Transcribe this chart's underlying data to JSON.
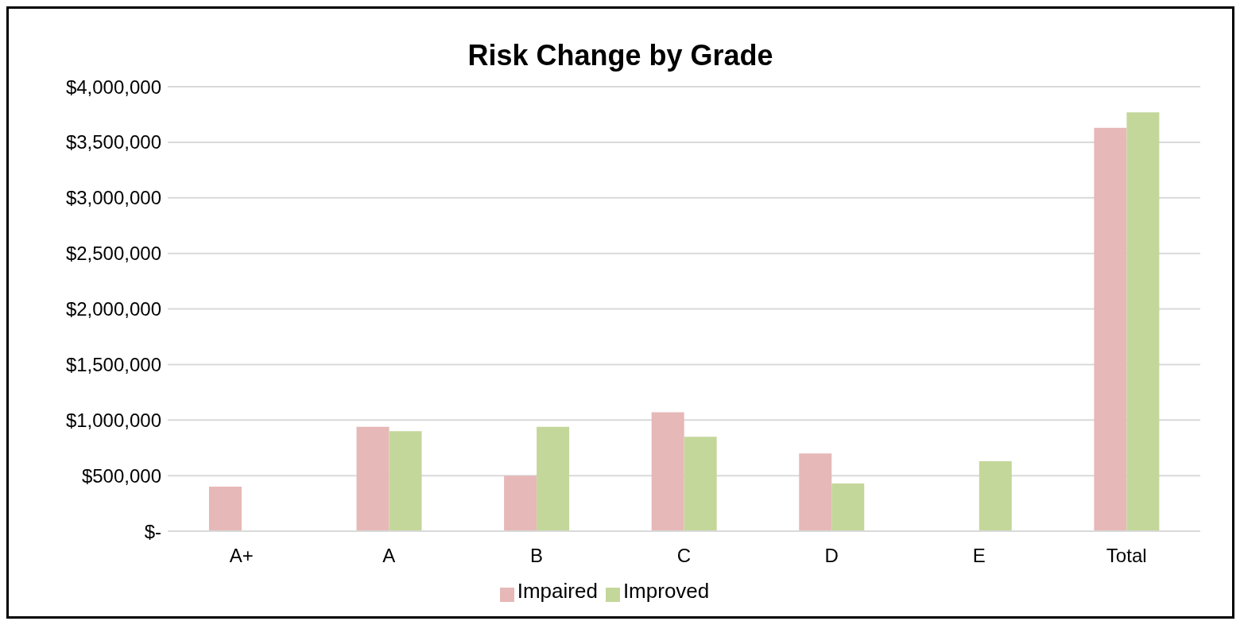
{
  "chart_data": {
    "type": "bar",
    "title": "Risk Change by Grade",
    "categories": [
      "A+",
      "A",
      "B",
      "C",
      "D",
      "E",
      "Total"
    ],
    "series": [
      {
        "name": "Impaired",
        "color": "#e6b8b7",
        "values": [
          400000,
          940000,
          500000,
          1070000,
          700000,
          null,
          3630000
        ]
      },
      {
        "name": "Improved",
        "color": "#c4d79b",
        "values": [
          null,
          900000,
          940000,
          850000,
          430000,
          630000,
          3770000
        ]
      }
    ],
    "ylim": [
      0,
      4000000
    ],
    "yticks": [
      {
        "value": 0,
        "label": "$-"
      },
      {
        "value": 500000,
        "label": "$500,000"
      },
      {
        "value": 1000000,
        "label": "$1,000,000"
      },
      {
        "value": 1500000,
        "label": "$1,500,000"
      },
      {
        "value": 2000000,
        "label": "$2,000,000"
      },
      {
        "value": 2500000,
        "label": "$2,500,000"
      },
      {
        "value": 3000000,
        "label": "$3,000,000"
      },
      {
        "value": 3500000,
        "label": "$3,500,000"
      },
      {
        "value": 4000000,
        "label": "$4,000,000"
      }
    ],
    "grid": "y",
    "legend": "bottom"
  }
}
